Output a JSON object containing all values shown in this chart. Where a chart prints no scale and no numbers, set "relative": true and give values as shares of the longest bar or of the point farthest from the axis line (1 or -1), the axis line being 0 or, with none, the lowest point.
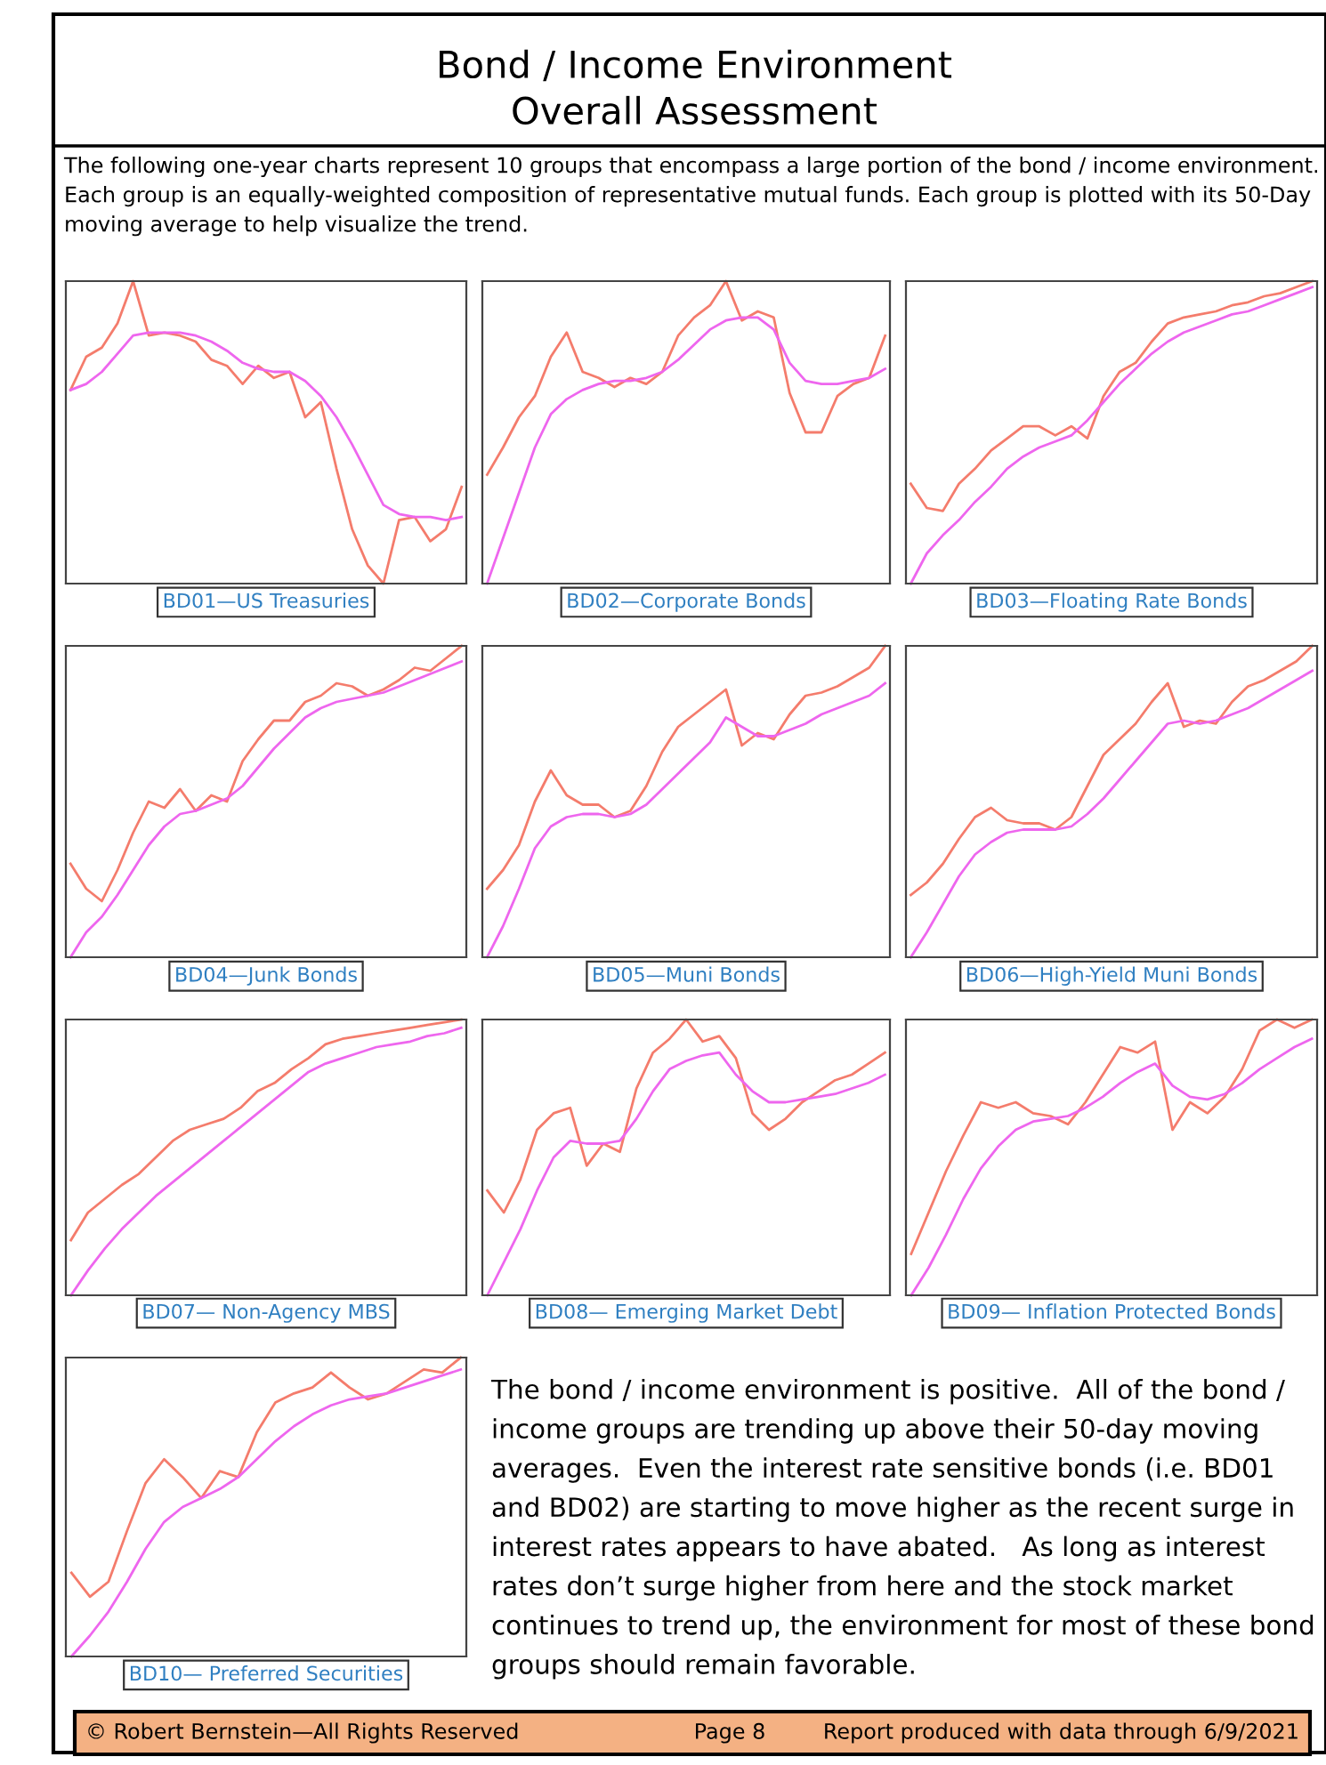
{
  "chart_data": [
    {
      "type": "other",
      "title": "Bond / Income Environment",
      "subtitle": "Overall Assessment",
      "annotations": [
        "The following one-year charts represent 10 groups that encompass a large portion of the bond / income environment. Each group is an equally-weighted composition of representative mutual funds. Each group is plotted with its 50-Day moving average to help visualize the trend."
      ]
    },
    {
      "type": "line",
      "title": "BD01—US Treasuries",
      "relative": true,
      "categories": [
        null,
        null,
        null,
        null,
        null,
        null,
        null,
        null,
        null,
        null,
        null,
        null,
        null,
        null,
        null,
        null,
        null,
        null,
        null,
        null,
        null,
        null,
        null,
        null,
        null,
        null
      ],
      "series": [
        {
          "color": "#f47c6c",
          "values": [
            0.64,
            0.75,
            0.78,
            0.86,
            1.0,
            0.82,
            0.83,
            0.82,
            0.8,
            0.74,
            0.72,
            0.66,
            0.72,
            0.68,
            0.7,
            0.55,
            0.6,
            0.38,
            0.18,
            0.06,
            0.0,
            0.21,
            0.22,
            0.14,
            0.18,
            0.32
          ]
        },
        {
          "color": "#ee66ee",
          "values": [
            0.64,
            0.66,
            0.7,
            0.76,
            0.82,
            0.83,
            0.83,
            0.83,
            0.82,
            0.8,
            0.77,
            0.73,
            0.71,
            0.7,
            0.7,
            0.67,
            0.62,
            0.55,
            0.46,
            0.36,
            0.26,
            0.23,
            0.22,
            0.22,
            0.21,
            0.22
          ]
        }
      ]
    },
    {
      "type": "line",
      "title": "BD02—Corporate Bonds",
      "relative": true,
      "categories": [
        null,
        null,
        null,
        null,
        null,
        null,
        null,
        null,
        null,
        null,
        null,
        null,
        null,
        null,
        null,
        null,
        null,
        null,
        null,
        null,
        null,
        null,
        null,
        null,
        null,
        null
      ],
      "series": [
        {
          "color": "#f47c6c",
          "values": [
            0.36,
            0.45,
            0.55,
            0.62,
            0.75,
            0.83,
            0.7,
            0.68,
            0.65,
            0.68,
            0.66,
            0.7,
            0.82,
            0.88,
            0.92,
            1.0,
            0.87,
            0.9,
            0.88,
            0.63,
            0.5,
            0.5,
            0.62,
            0.66,
            0.68,
            0.82
          ]
        },
        {
          "color": "#ee66ee",
          "values": [
            0.0,
            0.15,
            0.3,
            0.45,
            0.56,
            0.61,
            0.64,
            0.66,
            0.67,
            0.67,
            0.68,
            0.7,
            0.74,
            0.79,
            0.84,
            0.87,
            0.88,
            0.88,
            0.84,
            0.73,
            0.67,
            0.66,
            0.66,
            0.67,
            0.68,
            0.71
          ]
        }
      ]
    },
    {
      "type": "line",
      "title": "BD03—Floating Rate Bonds",
      "relative": true,
      "categories": [
        null,
        null,
        null,
        null,
        null,
        null,
        null,
        null,
        null,
        null,
        null,
        null,
        null,
        null,
        null,
        null,
        null,
        null,
        null,
        null,
        null,
        null,
        null,
        null,
        null,
        null
      ],
      "series": [
        {
          "color": "#f47c6c",
          "values": [
            0.33,
            0.25,
            0.24,
            0.33,
            0.38,
            0.44,
            0.48,
            0.52,
            0.52,
            0.49,
            0.52,
            0.48,
            0.62,
            0.7,
            0.73,
            0.8,
            0.86,
            0.88,
            0.89,
            0.9,
            0.92,
            0.93,
            0.95,
            0.96,
            0.98,
            1.0
          ]
        },
        {
          "color": "#ee66ee",
          "values": [
            0.0,
            0.1,
            0.16,
            0.21,
            0.27,
            0.32,
            0.38,
            0.42,
            0.45,
            0.47,
            0.49,
            0.54,
            0.6,
            0.66,
            0.71,
            0.76,
            0.8,
            0.83,
            0.85,
            0.87,
            0.89,
            0.9,
            0.92,
            0.94,
            0.96,
            0.98
          ]
        }
      ]
    },
    {
      "type": "line",
      "title": "BD04—Junk Bonds",
      "relative": true,
      "categories": [
        null,
        null,
        null,
        null,
        null,
        null,
        null,
        null,
        null,
        null,
        null,
        null,
        null,
        null,
        null,
        null,
        null,
        null,
        null,
        null,
        null,
        null,
        null,
        null,
        null,
        null
      ],
      "series": [
        {
          "color": "#f47c6c",
          "values": [
            0.3,
            0.22,
            0.18,
            0.28,
            0.4,
            0.5,
            0.48,
            0.54,
            0.47,
            0.52,
            0.5,
            0.63,
            0.7,
            0.76,
            0.76,
            0.82,
            0.84,
            0.88,
            0.87,
            0.84,
            0.86,
            0.89,
            0.93,
            0.92,
            0.96,
            1.0
          ]
        },
        {
          "color": "#ee66ee",
          "values": [
            0.0,
            0.08,
            0.13,
            0.2,
            0.28,
            0.36,
            0.42,
            0.46,
            0.47,
            0.49,
            0.51,
            0.55,
            0.61,
            0.67,
            0.72,
            0.77,
            0.8,
            0.82,
            0.83,
            0.84,
            0.85,
            0.87,
            0.89,
            0.91,
            0.93,
            0.95
          ]
        }
      ]
    },
    {
      "type": "line",
      "title": "BD05—Muni Bonds",
      "relative": true,
      "categories": [
        null,
        null,
        null,
        null,
        null,
        null,
        null,
        null,
        null,
        null,
        null,
        null,
        null,
        null,
        null,
        null,
        null,
        null,
        null,
        null,
        null,
        null,
        null,
        null,
        null,
        null
      ],
      "series": [
        {
          "color": "#f47c6c",
          "values": [
            0.22,
            0.28,
            0.36,
            0.5,
            0.6,
            0.52,
            0.49,
            0.49,
            0.45,
            0.47,
            0.55,
            0.66,
            0.74,
            0.78,
            0.82,
            0.86,
            0.68,
            0.72,
            0.7,
            0.78,
            0.84,
            0.85,
            0.87,
            0.9,
            0.93,
            1.0
          ]
        },
        {
          "color": "#ee66ee",
          "values": [
            0.0,
            0.1,
            0.22,
            0.35,
            0.42,
            0.45,
            0.46,
            0.46,
            0.45,
            0.46,
            0.49,
            0.54,
            0.59,
            0.64,
            0.69,
            0.77,
            0.74,
            0.71,
            0.71,
            0.73,
            0.75,
            0.78,
            0.8,
            0.82,
            0.84,
            0.88
          ]
        }
      ]
    },
    {
      "type": "line",
      "title": "BD06—High-Yield Muni Bonds",
      "relative": true,
      "categories": [
        null,
        null,
        null,
        null,
        null,
        null,
        null,
        null,
        null,
        null,
        null,
        null,
        null,
        null,
        null,
        null,
        null,
        null,
        null,
        null,
        null,
        null,
        null,
        null,
        null,
        null
      ],
      "series": [
        {
          "color": "#f47c6c",
          "values": [
            0.2,
            0.24,
            0.3,
            0.38,
            0.45,
            0.48,
            0.44,
            0.43,
            0.43,
            0.41,
            0.45,
            0.55,
            0.65,
            0.7,
            0.75,
            0.82,
            0.88,
            0.74,
            0.76,
            0.75,
            0.82,
            0.87,
            0.89,
            0.92,
            0.95,
            1.0
          ]
        },
        {
          "color": "#ee66ee",
          "values": [
            0.0,
            0.08,
            0.17,
            0.26,
            0.33,
            0.37,
            0.4,
            0.41,
            0.41,
            0.41,
            0.42,
            0.46,
            0.51,
            0.57,
            0.63,
            0.69,
            0.75,
            0.76,
            0.75,
            0.76,
            0.78,
            0.8,
            0.83,
            0.86,
            0.89,
            0.92
          ]
        }
      ]
    },
    {
      "type": "line",
      "title": "BD07— Non-Agency MBS",
      "relative": true,
      "categories": [
        null,
        null,
        null,
        null,
        null,
        null,
        null,
        null,
        null,
        null,
        null,
        null,
        null,
        null,
        null,
        null,
        null,
        null,
        null,
        null,
        null,
        null,
        null,
        null
      ],
      "series": [
        {
          "color": "#f47c6c",
          "values": [
            0.2,
            0.3,
            0.35,
            0.4,
            0.44,
            0.5,
            0.56,
            0.6,
            0.62,
            0.64,
            0.68,
            0.74,
            0.77,
            0.82,
            0.86,
            0.91,
            0.93,
            0.94,
            0.95,
            0.96,
            0.97,
            0.98,
            0.99,
            1.0
          ]
        },
        {
          "color": "#ee66ee",
          "values": [
            0.0,
            0.09,
            0.17,
            0.24,
            0.3,
            0.36,
            0.41,
            0.46,
            0.51,
            0.56,
            0.61,
            0.66,
            0.71,
            0.76,
            0.81,
            0.84,
            0.86,
            0.88,
            0.9,
            0.91,
            0.92,
            0.94,
            0.95,
            0.97
          ]
        }
      ]
    },
    {
      "type": "line",
      "title": "BD08— Emerging Market Debt",
      "relative": true,
      "categories": [
        null,
        null,
        null,
        null,
        null,
        null,
        null,
        null,
        null,
        null,
        null,
        null,
        null,
        null,
        null,
        null,
        null,
        null,
        null,
        null,
        null,
        null,
        null,
        null,
        null
      ],
      "series": [
        {
          "color": "#f47c6c",
          "values": [
            0.38,
            0.3,
            0.42,
            0.6,
            0.66,
            0.68,
            0.47,
            0.55,
            0.52,
            0.75,
            0.88,
            0.93,
            1.0,
            0.92,
            0.94,
            0.86,
            0.66,
            0.6,
            0.64,
            0.7,
            0.74,
            0.78,
            0.8,
            0.84,
            0.88
          ]
        },
        {
          "color": "#ee66ee",
          "values": [
            0.0,
            0.12,
            0.24,
            0.38,
            0.5,
            0.56,
            0.55,
            0.55,
            0.56,
            0.64,
            0.74,
            0.82,
            0.85,
            0.87,
            0.88,
            0.8,
            0.74,
            0.7,
            0.7,
            0.71,
            0.72,
            0.73,
            0.75,
            0.77,
            0.8
          ]
        }
      ]
    },
    {
      "type": "line",
      "title": "BD09— Inflation Protected Bonds",
      "relative": true,
      "categories": [
        null,
        null,
        null,
        null,
        null,
        null,
        null,
        null,
        null,
        null,
        null,
        null,
        null,
        null,
        null,
        null,
        null,
        null,
        null,
        null,
        null,
        null,
        null,
        null
      ],
      "series": [
        {
          "color": "#f47c6c",
          "values": [
            0.15,
            0.3,
            0.45,
            0.58,
            0.7,
            0.68,
            0.7,
            0.66,
            0.65,
            0.62,
            0.7,
            0.8,
            0.9,
            0.88,
            0.92,
            0.6,
            0.7,
            0.66,
            0.72,
            0.82,
            0.96,
            1.0,
            0.97,
            1.0
          ]
        },
        {
          "color": "#ee66ee",
          "values": [
            0.0,
            0.1,
            0.22,
            0.35,
            0.46,
            0.54,
            0.6,
            0.63,
            0.64,
            0.65,
            0.68,
            0.72,
            0.77,
            0.81,
            0.84,
            0.76,
            0.72,
            0.71,
            0.73,
            0.77,
            0.82,
            0.86,
            0.9,
            0.93
          ]
        }
      ]
    },
    {
      "type": "line",
      "title": "BD10— Preferred Securities",
      "relative": true,
      "categories": [
        null,
        null,
        null,
        null,
        null,
        null,
        null,
        null,
        null,
        null,
        null,
        null,
        null,
        null,
        null,
        null,
        null,
        null,
        null,
        null,
        null,
        null
      ],
      "series": [
        {
          "color": "#f47c6c",
          "values": [
            0.28,
            0.2,
            0.25,
            0.42,
            0.58,
            0.66,
            0.6,
            0.53,
            0.62,
            0.6,
            0.75,
            0.85,
            0.88,
            0.9,
            0.95,
            0.9,
            0.86,
            0.88,
            0.92,
            0.96,
            0.95,
            1.0
          ]
        },
        {
          "color": "#ee66ee",
          "values": [
            0.0,
            0.07,
            0.15,
            0.25,
            0.36,
            0.45,
            0.5,
            0.53,
            0.56,
            0.6,
            0.66,
            0.72,
            0.77,
            0.81,
            0.84,
            0.86,
            0.87,
            0.88,
            0.9,
            0.92,
            0.94,
            0.96
          ]
        }
      ]
    },
    {
      "type": "other",
      "annotations": [
        "The bond / income environment is positive.  All of the bond / income groups are trending up above their 50-day moving averages.  Even the interest rate sensitive bonds (i.e. BD01 and BD02) are starting to move higher as the recent surge in interest rates appears to have abated.   As long as interest rates don’t surge higher from here and the stock market continues to trend up, the environment for most of these bond groups should remain favorable."
      ]
    },
    {
      "type": "other",
      "annotations": [
        "© Robert Bernstein—All Rights Reserved",
        "Page 8",
        "Report produced with data through 6/9/2021"
      ]
    }
  ]
}
